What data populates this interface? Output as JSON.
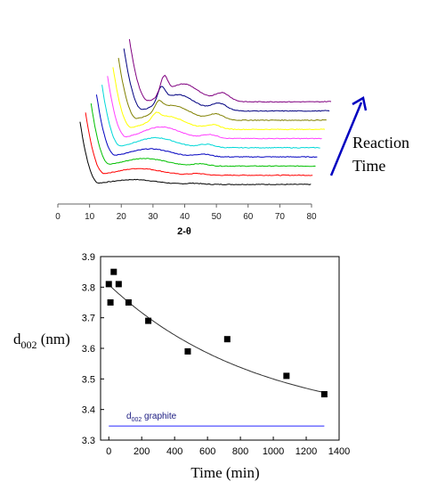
{
  "chart_data": [
    {
      "type": "line",
      "title": "",
      "xlabel": "2-θ",
      "ylabel": "",
      "xlim": [
        0,
        80
      ],
      "x_ticks": [
        "0",
        "10",
        "20",
        "30",
        "40",
        "50",
        "60",
        "70",
        "80"
      ],
      "annotation": [
        "Reaction",
        "Time"
      ],
      "grid": false,
      "series": [
        {
          "color": "#000000",
          "start": 7,
          "offset": 0,
          "hump": 0.3,
          "peak2": 0.04,
          "peak3": 0.0
        },
        {
          "color": "#ff0000",
          "start": 8,
          "offset": 1,
          "hump": 0.42,
          "peak2": 0.06,
          "peak3": 0.0
        },
        {
          "color": "#00c000",
          "start": 9,
          "offset": 2,
          "hump": 0.48,
          "peak2": 0.08,
          "peak3": 0.0
        },
        {
          "color": "#0000c0",
          "start": 10,
          "offset": 3,
          "hump": 0.5,
          "peak2": 0.1,
          "peak3": 0.0
        },
        {
          "color": "#00d8d8",
          "start": 11,
          "offset": 4,
          "hump": 0.62,
          "peak2": 0.12,
          "peak3": 0.0
        },
        {
          "color": "#ff40ff",
          "start": 12,
          "offset": 5,
          "hump": 0.72,
          "peak2": 0.14,
          "peak3": 0.0
        },
        {
          "color": "#ffff00",
          "start": 13,
          "offset": 6,
          "hump": 0.82,
          "peak2": 0.16,
          "peak3": 0.02
        },
        {
          "color": "#808000",
          "start": 14,
          "offset": 7,
          "hump": 0.92,
          "peak2": 0.22,
          "peak3": 0.03
        },
        {
          "color": "#000080",
          "start": 15,
          "offset": 8,
          "hump": 1.02,
          "peak2": 0.28,
          "peak3": 0.05
        },
        {
          "color": "#800080",
          "start": 16,
          "offset": 9,
          "hump": 1.12,
          "peak2": 0.32,
          "peak3": 0.06
        }
      ]
    },
    {
      "type": "scatter",
      "title": "",
      "xlabel": "Time (min)",
      "ylabel": "d",
      "ylabel_sub": "002",
      "ylabel_unit": " (nm)",
      "xlim": [
        -50,
        1400
      ],
      "ylim": [
        3.3,
        3.9
      ],
      "x_ticks": [
        0,
        200,
        400,
        600,
        800,
        1000,
        1200,
        1400
      ],
      "y_ticks": [
        "3.3",
        "3.4",
        "3.5",
        "3.6",
        "3.7",
        "3.8",
        "3.9"
      ],
      "series": [
        {
          "values": [
            {
              "x": 0,
              "y": 3.81
            },
            {
              "x": 10,
              "y": 3.75
            },
            {
              "x": 30,
              "y": 3.85
            },
            {
              "x": 60,
              "y": 3.81
            },
            {
              "x": 120,
              "y": 3.75
            },
            {
              "x": 240,
              "y": 3.69
            },
            {
              "x": 480,
              "y": 3.59
            },
            {
              "x": 720,
              "y": 3.63
            },
            {
              "x": 1080,
              "y": 3.51
            },
            {
              "x": 1310,
              "y": 3.45
            }
          ]
        }
      ],
      "fit": {
        "type": "exponential",
        "a": 3.346,
        "b": 0.462,
        "k": 0.0011,
        "color": "#333333"
      },
      "reference": {
        "y": 3.346,
        "label_sub": "002",
        "label_pre": "d",
        "label_post": " graphite",
        "color": "#4040ff"
      },
      "grid": false
    }
  ]
}
